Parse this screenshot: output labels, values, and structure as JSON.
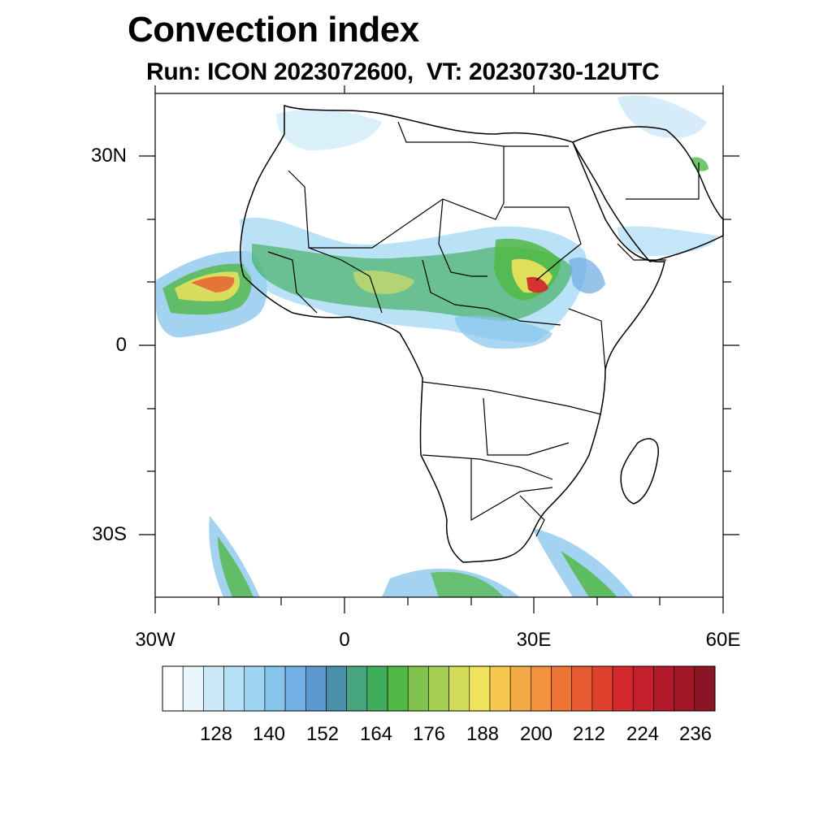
{
  "title": "Convection index",
  "subtitle": "Run: ICON 2023072600,  VT: 20230730-12UTC",
  "map": {
    "region": "Africa",
    "lon_range": [
      -30,
      60
    ],
    "lat_range": [
      -40,
      40
    ],
    "lat_ticks": [
      "30N",
      "0",
      "30S"
    ],
    "lon_ticks": [
      "30W",
      "0",
      "30E",
      "60E"
    ]
  },
  "colorbar": {
    "labels": [
      "128",
      "140",
      "152",
      "164",
      "176",
      "188",
      "200",
      "212",
      "224",
      "236"
    ],
    "colors": [
      "#ffffff",
      "#e8f5fc",
      "#cce9f8",
      "#b5e0f6",
      "#9dd5f3",
      "#86c4ec",
      "#72afe2",
      "#5d98d1",
      "#4a90a8",
      "#46a57f",
      "#3fae5c",
      "#51b847",
      "#7fc34e",
      "#a7cf55",
      "#d2dc58",
      "#efe35c",
      "#f7c84e",
      "#f5ab45",
      "#f3913d",
      "#ee7436",
      "#e85a31",
      "#df402e",
      "#d3292d",
      "#c51f2c",
      "#b3192a",
      "#a11728",
      "#8b1524"
    ]
  }
}
